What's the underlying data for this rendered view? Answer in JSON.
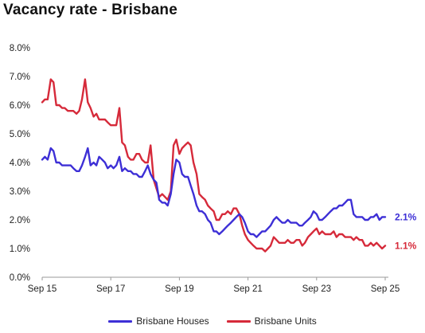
{
  "chart_data": {
    "type": "line",
    "title": "Vacancy rate - Brisbane",
    "xlabel": "",
    "ylabel": "",
    "x_tick_labels": [
      "Sep 15",
      "Sep 17",
      "Sep 19",
      "Sep 21",
      "Sep 23",
      "Sep 25"
    ],
    "y_tick_labels": [
      "0.0%",
      "1.0%",
      "2.0%",
      "3.0%",
      "4.0%",
      "5.0%",
      "6.0%",
      "7.0%",
      "8.0%"
    ],
    "ylim": [
      0,
      8
    ],
    "x_unit": "year",
    "xlim": [
      2015.67,
      2025.67
    ],
    "grid": false,
    "legend_position": "bottom",
    "series": [
      {
        "name": "Brisbane Houses",
        "color": "#3d2fd6",
        "end_label": "2.1%",
        "x": [
          2015.67,
          2015.75,
          2015.83,
          2015.92,
          2016.0,
          2016.08,
          2016.17,
          2016.25,
          2016.33,
          2016.42,
          2016.5,
          2016.58,
          2016.67,
          2016.75,
          2016.83,
          2016.92,
          2017.0,
          2017.08,
          2017.17,
          2017.25,
          2017.33,
          2017.42,
          2017.5,
          2017.58,
          2017.67,
          2017.75,
          2017.83,
          2017.92,
          2018.0,
          2018.08,
          2018.17,
          2018.25,
          2018.33,
          2018.42,
          2018.5,
          2018.58,
          2018.67,
          2018.75,
          2018.83,
          2018.92,
          2019.0,
          2019.08,
          2019.17,
          2019.25,
          2019.33,
          2019.42,
          2019.5,
          2019.58,
          2019.67,
          2019.75,
          2019.83,
          2019.92,
          2020.0,
          2020.08,
          2020.17,
          2020.25,
          2020.33,
          2020.42,
          2020.5,
          2020.58,
          2020.67,
          2020.75,
          2020.83,
          2020.92,
          2021.0,
          2021.08,
          2021.17,
          2021.25,
          2021.33,
          2021.42,
          2021.5,
          2021.58,
          2021.67,
          2021.75,
          2021.83,
          2021.92,
          2022.0,
          2022.08,
          2022.17,
          2022.25,
          2022.33,
          2022.42,
          2022.5,
          2022.58,
          2022.67,
          2022.75,
          2022.83,
          2022.92,
          2023.0,
          2023.08,
          2023.17,
          2023.25,
          2023.33,
          2023.42,
          2023.5,
          2023.58,
          2023.67,
          2023.75,
          2023.83,
          2023.92,
          2024.0,
          2024.08,
          2024.17,
          2024.25,
          2024.33,
          2024.42,
          2024.5,
          2024.58,
          2024.67,
          2024.75,
          2024.83,
          2024.92,
          2025.0,
          2025.08,
          2025.17,
          2025.25,
          2025.33,
          2025.42,
          2025.5,
          2025.58,
          2025.67
        ],
        "values": [
          4.1,
          4.2,
          4.1,
          4.5,
          4.4,
          4.0,
          4.0,
          3.9,
          3.9,
          3.9,
          3.9,
          3.8,
          3.7,
          3.7,
          3.9,
          4.2,
          4.5,
          3.9,
          4.0,
          3.9,
          4.2,
          4.1,
          4.0,
          3.8,
          3.9,
          3.8,
          3.9,
          4.2,
          3.7,
          3.8,
          3.7,
          3.7,
          3.6,
          3.6,
          3.5,
          3.5,
          3.7,
          3.9,
          3.6,
          3.4,
          3.3,
          2.7,
          2.6,
          2.6,
          2.5,
          2.9,
          3.6,
          4.1,
          4.0,
          3.6,
          3.5,
          3.5,
          3.2,
          2.9,
          2.5,
          2.3,
          2.3,
          2.2,
          2.0,
          1.9,
          1.6,
          1.6,
          1.5,
          1.6,
          1.7,
          1.8,
          1.9,
          2.0,
          2.1,
          2.2,
          2.1,
          1.9,
          1.6,
          1.5,
          1.5,
          1.4,
          1.5,
          1.6,
          1.6,
          1.7,
          1.8,
          2.0,
          2.1,
          2.0,
          1.9,
          1.9,
          2.0,
          1.9,
          1.9,
          1.9,
          1.8,
          1.8,
          1.9,
          2.0,
          2.1,
          2.3,
          2.2,
          2.0,
          2.0,
          2.1,
          2.2,
          2.3,
          2.4,
          2.4,
          2.5,
          2.5,
          2.6,
          2.7,
          2.7,
          2.2,
          2.1,
          2.1,
          2.1,
          2.0,
          2.0,
          2.1,
          2.1,
          2.2,
          2.0,
          2.1,
          2.1
        ]
      },
      {
        "name": "Brisbane Units",
        "color": "#d62a3a",
        "end_label": "1.1%",
        "x": [
          2015.67,
          2015.75,
          2015.83,
          2015.92,
          2016.0,
          2016.08,
          2016.17,
          2016.25,
          2016.33,
          2016.42,
          2016.5,
          2016.58,
          2016.67,
          2016.75,
          2016.83,
          2016.92,
          2017.0,
          2017.08,
          2017.17,
          2017.25,
          2017.33,
          2017.42,
          2017.5,
          2017.58,
          2017.67,
          2017.75,
          2017.83,
          2017.92,
          2018.0,
          2018.08,
          2018.17,
          2018.25,
          2018.33,
          2018.42,
          2018.5,
          2018.58,
          2018.67,
          2018.75,
          2018.83,
          2018.92,
          2019.0,
          2019.08,
          2019.17,
          2019.25,
          2019.33,
          2019.42,
          2019.5,
          2019.58,
          2019.67,
          2019.75,
          2019.83,
          2019.92,
          2020.0,
          2020.08,
          2020.17,
          2020.25,
          2020.33,
          2020.42,
          2020.5,
          2020.58,
          2020.67,
          2020.75,
          2020.83,
          2020.92,
          2021.0,
          2021.08,
          2021.17,
          2021.25,
          2021.33,
          2021.42,
          2021.5,
          2021.58,
          2021.67,
          2021.75,
          2021.83,
          2021.92,
          2022.0,
          2022.08,
          2022.17,
          2022.25,
          2022.33,
          2022.42,
          2022.5,
          2022.58,
          2022.67,
          2022.75,
          2022.83,
          2022.92,
          2023.0,
          2023.08,
          2023.17,
          2023.25,
          2023.33,
          2023.42,
          2023.5,
          2023.58,
          2023.67,
          2023.75,
          2023.83,
          2023.92,
          2024.0,
          2024.08,
          2024.17,
          2024.25,
          2024.33,
          2024.42,
          2024.5,
          2024.58,
          2024.67,
          2024.75,
          2024.83,
          2024.92,
          2025.0,
          2025.08,
          2025.17,
          2025.25,
          2025.33,
          2025.42,
          2025.5,
          2025.58,
          2025.67
        ],
        "values": [
          6.1,
          6.2,
          6.2,
          6.9,
          6.8,
          6.0,
          6.0,
          5.9,
          5.9,
          5.8,
          5.8,
          5.8,
          5.7,
          5.8,
          6.2,
          6.9,
          6.1,
          5.9,
          5.6,
          5.7,
          5.5,
          5.5,
          5.5,
          5.4,
          5.3,
          5.3,
          5.3,
          5.9,
          4.7,
          4.6,
          4.2,
          4.1,
          4.1,
          4.3,
          4.3,
          4.1,
          4.0,
          4.0,
          4.6,
          3.4,
          3.1,
          2.8,
          2.9,
          2.8,
          2.7,
          3.0,
          4.6,
          4.8,
          4.3,
          4.5,
          4.6,
          4.7,
          4.6,
          4.0,
          3.6,
          2.9,
          2.8,
          2.7,
          2.5,
          2.4,
          2.3,
          2.0,
          2.0,
          2.2,
          2.2,
          2.3,
          2.2,
          2.4,
          2.4,
          2.2,
          1.8,
          1.5,
          1.3,
          1.2,
          1.1,
          1.0,
          1.0,
          1.0,
          0.9,
          1.0,
          1.1,
          1.4,
          1.3,
          1.2,
          1.2,
          1.2,
          1.3,
          1.2,
          1.2,
          1.3,
          1.3,
          1.1,
          1.2,
          1.4,
          1.5,
          1.6,
          1.7,
          1.5,
          1.6,
          1.5,
          1.5,
          1.5,
          1.6,
          1.4,
          1.5,
          1.5,
          1.4,
          1.4,
          1.4,
          1.3,
          1.4,
          1.3,
          1.3,
          1.1,
          1.1,
          1.2,
          1.1,
          1.2,
          1.1,
          1.0,
          1.1
        ]
      }
    ]
  }
}
